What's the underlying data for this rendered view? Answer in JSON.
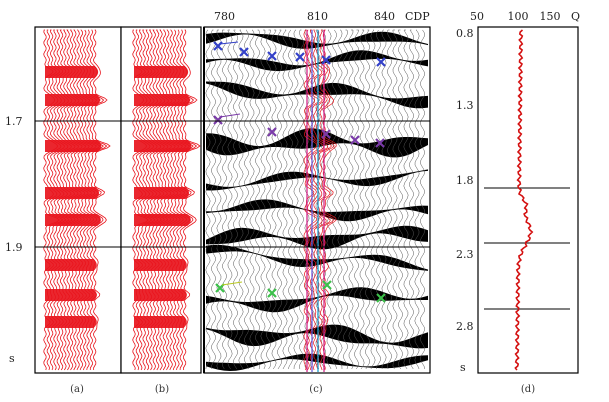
{
  "left_axis": {
    "ticks": [
      "1.7",
      "1.9"
    ],
    "unit": "s"
  },
  "panel_c": {
    "cdp_ticks": [
      "780",
      "810",
      "840"
    ],
    "cdp_label": "CDP"
  },
  "panel_d": {
    "q_ticks": [
      "50",
      "100",
      "150"
    ],
    "q_label": "Q",
    "time_ticks": [
      "0.8",
      "1.3",
      "1.8",
      "2.3",
      "2.8"
    ],
    "unit": "s"
  },
  "captions": {
    "a": "(a)",
    "b": "(b)",
    "c": "(c)",
    "d": "(d)"
  },
  "colors": {
    "trace_red": "#e8141c",
    "marker_blue": "#3340c8",
    "marker_purple": "#7a3aa8",
    "marker_green": "#3cc04a",
    "pick_magenta": "#d42a8c"
  }
}
